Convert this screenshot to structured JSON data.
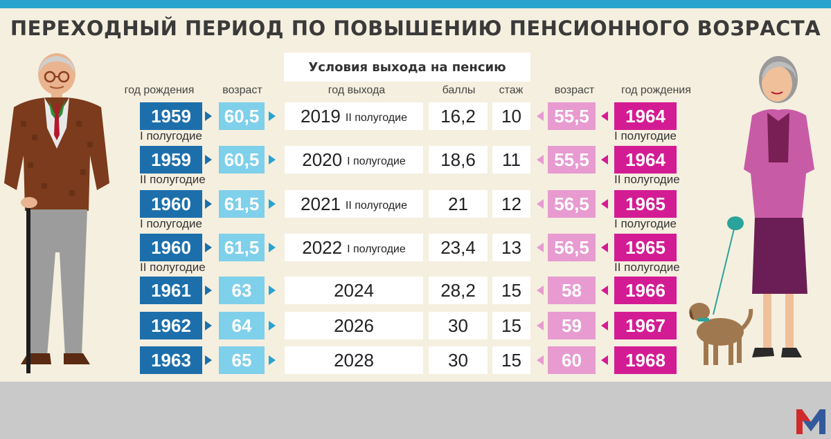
{
  "title": "ПЕРЕХОДНЫЙ ПЕРИОД ПО ПОВЫШЕНИЮ ПЕНСИОННОГО ВОЗРАСТА",
  "subtitle": "Условия выхода на пенсию",
  "headers": {
    "birth_year_men": "год рождения",
    "age_men": "возраст",
    "exit_year": "год выхода",
    "points": "баллы",
    "experience": "стаж",
    "age_women": "возраст",
    "birth_year_women": "год рождения"
  },
  "rows": [
    {
      "men_birth": "1959",
      "men_age": "60,5",
      "year": "2019",
      "half": "II полугодие",
      "points": "16,2",
      "exp": "10",
      "women_age": "55,5",
      "women_birth": "1964"
    },
    {
      "men_birth": "1959",
      "men_age": "60,5",
      "year": "2020",
      "half": "I полугодие",
      "points": "18,6",
      "exp": "11",
      "women_age": "55,5",
      "women_birth": "1964"
    },
    {
      "men_birth": "1960",
      "men_age": "61,5",
      "year": "2021",
      "half": "II полугодие",
      "points": "21",
      "exp": "12",
      "women_age": "56,5",
      "women_birth": "1965"
    },
    {
      "men_birth": "1960",
      "men_age": "61,5",
      "year": "2022",
      "half": "I полугодие",
      "points": "23,4",
      "exp": "13",
      "women_age": "56,5",
      "women_birth": "1965"
    },
    {
      "men_birth": "1961",
      "men_age": "63",
      "year": "2024",
      "half": "",
      "points": "28,2",
      "exp": "15",
      "women_age": "58",
      "women_birth": "1966"
    },
    {
      "men_birth": "1962",
      "men_age": "64",
      "year": "2026",
      "half": "",
      "points": "30",
      "exp": "15",
      "women_age": "59",
      "women_birth": "1967"
    },
    {
      "men_birth": "1963",
      "men_age": "65",
      "year": "2028",
      "half": "",
      "points": "30",
      "exp": "15",
      "women_age": "60",
      "women_birth": "1968"
    }
  ],
  "notes": [
    {
      "left": "I полугодие",
      "right": "I полугодие"
    },
    {
      "left": "II полугодие",
      "right": "II полугодие"
    },
    {
      "left": "I полугодие",
      "right": "I полугодие"
    },
    {
      "left": "II полугодие",
      "right": "II полугодие"
    }
  ],
  "colors": {
    "men_birth": "#1c6fab",
    "men_age": "#7fd0ea",
    "women_age": "#e79bd0",
    "women_birth": "#d31c93",
    "accent": "#2aa3cf"
  },
  "icons": {
    "man": "elderly-man-illustration",
    "woman": "elderly-woman-illustration",
    "dog": "dog-illustration",
    "logo": "m-logo-icon"
  }
}
